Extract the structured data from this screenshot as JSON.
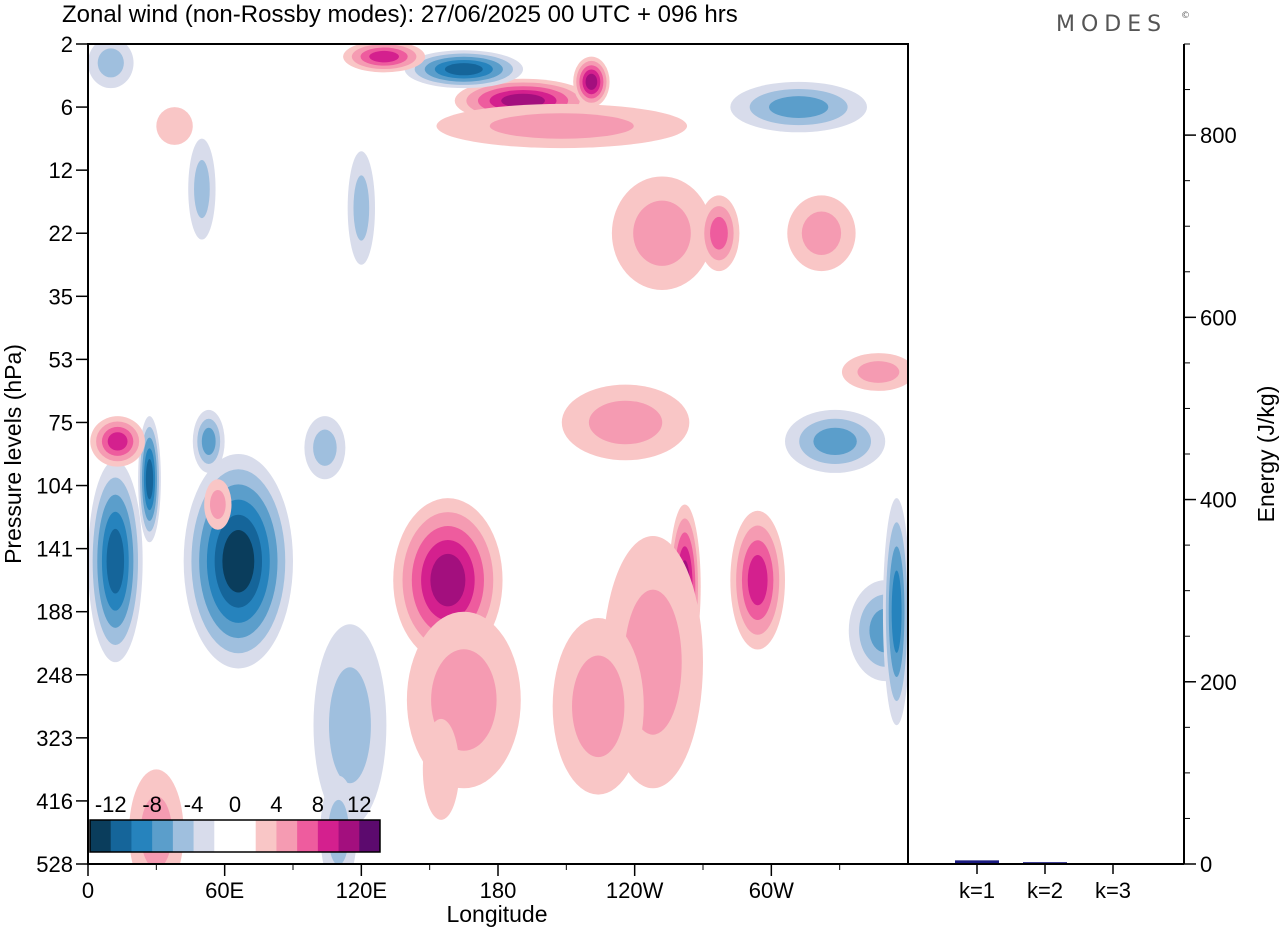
{
  "title": "Zonal wind (non-Rossby modes):  27/06/2025  00 UTC  + 096 hrs",
  "logo": "MODES",
  "logo_mark": "©",
  "chart_data": [
    {
      "type": "heatmap",
      "xlabel": "Longitude",
      "ylabel": "Pressure levels (hPa)",
      "x_ticks": [
        "0",
        "60E",
        "120E",
        "180",
        "120W",
        "60W"
      ],
      "x_tick_values": [
        0,
        60,
        120,
        180,
        240,
        300
      ],
      "xlim": [
        0,
        360
      ],
      "y_ticks": [
        "2",
        "6",
        "12",
        "22",
        "35",
        "53",
        "75",
        "104",
        "141",
        "188",
        "248",
        "323",
        "416",
        "528"
      ],
      "colorbar": {
        "labels": [
          "-12",
          "-8",
          "-4",
          "0",
          "4",
          "8",
          "12"
        ],
        "colors": [
          "#0a3d5c",
          "#15659a",
          "#2683bd",
          "#5b9ecb",
          "#9fbfde",
          "#d8dceb",
          "#ffffff",
          "#ffffff",
          "#f9c6c6",
          "#f59bb2",
          "#ee5c9e",
          "#d4208e",
          "#a30f7e",
          "#5c0a6e"
        ]
      },
      "blobs": [
        {
          "lon": 66,
          "level_index": 8.2,
          "w": 24,
          "h": 1.7,
          "value": -14
        },
        {
          "lon": 12,
          "level_index": 8.2,
          "w": 12,
          "h": 1.6,
          "value": -9
        },
        {
          "lon": 27,
          "level_index": 6.9,
          "w": 5,
          "h": 1.0,
          "value": -9
        },
        {
          "lon": 53,
          "level_index": 6.3,
          "w": 7,
          "h": 0.5,
          "value": -5
        },
        {
          "lon": 104,
          "level_index": 6.4,
          "w": 9,
          "h": 0.5,
          "value": -4
        },
        {
          "lon": 115,
          "level_index": 10.8,
          "w": 16,
          "h": 1.6,
          "value": -4
        },
        {
          "lon": 158,
          "level_index": 8.5,
          "w": 24,
          "h": 1.3,
          "value": 10
        },
        {
          "lon": 165,
          "level_index": 10.4,
          "w": 25,
          "h": 1.4,
          "value": 4
        },
        {
          "lon": 262,
          "level_index": 8.6,
          "w": 7,
          "h": 1.3,
          "value": 9
        },
        {
          "lon": 294,
          "level_index": 8.5,
          "w": 12,
          "h": 1.1,
          "value": 7
        },
        {
          "lon": 248,
          "level_index": 9.8,
          "w": 22,
          "h": 2.0,
          "value": 3
        },
        {
          "lon": 224,
          "level_index": 10.5,
          "w": 20,
          "h": 1.4,
          "value": 3
        },
        {
          "lon": 236,
          "level_index": 6.0,
          "w": 28,
          "h": 0.6,
          "value": 4
        },
        {
          "lon": 13,
          "level_index": 6.3,
          "w": 12,
          "h": 0.4,
          "value": 8
        },
        {
          "lon": 57,
          "level_index": 7.3,
          "w": 6,
          "h": 0.4,
          "value": 4
        },
        {
          "lon": 350,
          "level_index": 9.3,
          "w": 16,
          "h": 0.8,
          "value": -5
        },
        {
          "lon": 328,
          "level_index": 6.3,
          "w": 22,
          "h": 0.5,
          "value": -6
        },
        {
          "lon": 347,
          "level_index": 5.2,
          "w": 16,
          "h": 0.3,
          "value": 3
        },
        {
          "lon": 191,
          "level_index": 0.9,
          "w": 30,
          "h": 0.35,
          "value": 9
        },
        {
          "lon": 221,
          "level_index": 0.6,
          "w": 8,
          "h": 0.4,
          "value": 10
        },
        {
          "lon": 165,
          "level_index": 0.4,
          "w": 26,
          "h": 0.3,
          "value": -9
        },
        {
          "lon": 312,
          "level_index": 1.0,
          "w": 30,
          "h": 0.4,
          "value": -6
        },
        {
          "lon": 208,
          "level_index": 1.3,
          "w": 55,
          "h": 0.35,
          "value": 3
        },
        {
          "lon": 252,
          "level_index": 3.0,
          "w": 22,
          "h": 0.9,
          "value": 3
        },
        {
          "lon": 277,
          "level_index": 3.0,
          "w": 9,
          "h": 0.6,
          "value": 5
        },
        {
          "lon": 322,
          "level_index": 3.0,
          "w": 15,
          "h": 0.6,
          "value": 3
        },
        {
          "lon": 130,
          "level_index": 0.2,
          "w": 18,
          "h": 0.25,
          "value": 7
        },
        {
          "lon": 120,
          "level_index": 2.6,
          "w": 6,
          "h": 0.9,
          "value": -3
        },
        {
          "lon": 50,
          "level_index": 2.3,
          "w": 6,
          "h": 0.8,
          "value": -3
        },
        {
          "lon": 38,
          "level_index": 1.3,
          "w": 8,
          "h": 0.3,
          "value": 2
        },
        {
          "lon": 10,
          "level_index": 0.3,
          "w": 10,
          "h": 0.4,
          "value": -4
        },
        {
          "lon": 30,
          "level_index": 12.5,
          "w": 12,
          "h": 1.0,
          "value": 3
        },
        {
          "lon": 155,
          "level_index": 11.5,
          "w": 8,
          "h": 0.8,
          "value": 2
        },
        {
          "lon": 110,
          "level_index": 12.5,
          "w": 8,
          "h": 0.9,
          "value": -4
        },
        {
          "lon": 355,
          "level_index": 9.0,
          "w": 6,
          "h": 1.8,
          "value": -7
        }
      ]
    },
    {
      "type": "bar",
      "ylabel": "Energy (J/kg)",
      "categories": [
        "k=1",
        "k=2",
        "k=3"
      ],
      "values": [
        4,
        2,
        1
      ],
      "ylim": [
        0,
        900
      ],
      "y_ticks": [
        0,
        200,
        400,
        600,
        800
      ],
      "bar_color": "#1a1a80"
    }
  ]
}
